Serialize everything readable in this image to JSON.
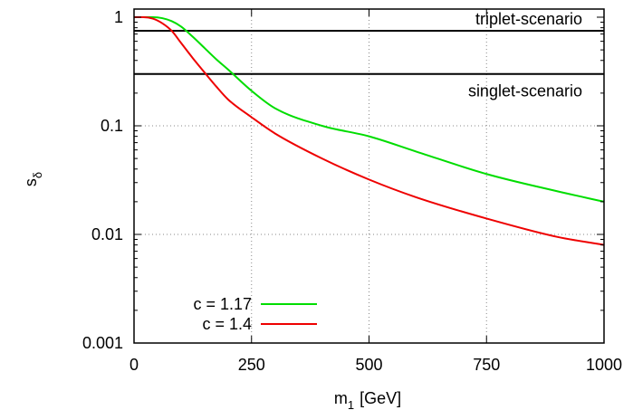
{
  "chart_data": {
    "type": "line",
    "xlabel": "m",
    "xlabel_sub": "1",
    "xlabel_unit": "[GeV]",
    "ylabel": "s",
    "ylabel_sub": "δ",
    "xlim": [
      0,
      1000
    ],
    "ylim": [
      0.001,
      1.2
    ],
    "y_scale": "log",
    "grid": true,
    "legend_position": "bottom-left",
    "x_ticks": [
      {
        "value": 0,
        "label": "0"
      },
      {
        "value": 250,
        "label": "250"
      },
      {
        "value": 500,
        "label": "500"
      },
      {
        "value": 750,
        "label": "750"
      },
      {
        "value": 1000,
        "label": "1000"
      }
    ],
    "y_ticks": [
      {
        "value": 1,
        "label": "1"
      },
      {
        "value": 0.1,
        "label": "0.1"
      },
      {
        "value": 0.01,
        "label": "0.01"
      },
      {
        "value": 0.001,
        "label": "0.001"
      }
    ],
    "hlines": [
      {
        "label": "triplet-scenario",
        "y": 0.75,
        "color": "#000000"
      },
      {
        "label": "singlet-scenario",
        "y": 0.3,
        "color": "#000000"
      }
    ],
    "series": [
      {
        "name": "c = 1.17",
        "color": "#00dd00",
        "x": [
          0,
          40,
          60,
          80,
          100,
          125,
          150,
          175,
          200,
          250,
          300,
          400,
          500,
          600,
          750,
          900,
          1000
        ],
        "y": [
          1.0,
          1.0,
          0.98,
          0.92,
          0.82,
          0.66,
          0.52,
          0.41,
          0.33,
          0.21,
          0.145,
          0.1,
          0.08,
          0.058,
          0.036,
          0.025,
          0.02
        ]
      },
      {
        "name": "c = 1.4",
        "color": "#ee0000",
        "x": [
          0,
          20,
          40,
          60,
          80,
          100,
          125,
          150,
          175,
          200,
          250,
          300,
          400,
          500,
          600,
          750,
          900,
          1000
        ],
        "y": [
          1.0,
          1.0,
          0.97,
          0.88,
          0.75,
          0.58,
          0.42,
          0.31,
          0.23,
          0.175,
          0.12,
          0.085,
          0.05,
          0.032,
          0.022,
          0.014,
          0.0095,
          0.008
        ]
      }
    ]
  }
}
